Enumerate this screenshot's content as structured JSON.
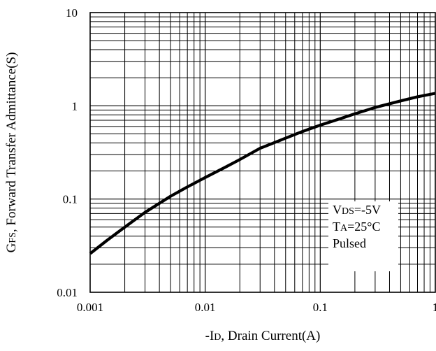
{
  "chart_data": {
    "type": "line",
    "xscale": "log",
    "yscale": "log",
    "xlim": [
      0.001,
      1
    ],
    "ylim": [
      0.01,
      10
    ],
    "grid": true,
    "xlabel": {
      "prefix": "-I",
      "sub": "D",
      "suffix": ", Drain Current(A)"
    },
    "ylabel": {
      "prefix": "G",
      "sub": "FS",
      "suffix": ", Forward Transfer Admittance(S)"
    },
    "x_ticks": [
      {
        "value": 0.001,
        "label": "0.001"
      },
      {
        "value": 0.01,
        "label": "0.01"
      },
      {
        "value": 0.1,
        "label": "0.1"
      },
      {
        "value": 1,
        "label": "1"
      }
    ],
    "y_ticks": [
      {
        "value": 0.01,
        "label": "0.01"
      },
      {
        "value": 0.1,
        "label": "0.1"
      },
      {
        "value": 1,
        "label": "1"
      },
      {
        "value": 10,
        "label": "10"
      }
    ],
    "series": [
      {
        "x": [
          0.001,
          0.0014,
          0.002,
          0.003,
          0.005,
          0.007,
          0.01,
          0.015,
          0.02,
          0.03,
          0.05,
          0.07,
          0.1,
          0.15,
          0.2,
          0.3,
          0.5,
          0.7,
          1
        ],
        "y": [
          0.026,
          0.036,
          0.05,
          0.072,
          0.107,
          0.135,
          0.17,
          0.22,
          0.265,
          0.35,
          0.45,
          0.53,
          0.62,
          0.73,
          0.82,
          0.96,
          1.13,
          1.25,
          1.36
        ]
      }
    ],
    "annotation": {
      "lines": [
        {
          "prefix": "V",
          "sub": "DS",
          "suffix": "=-5V"
        },
        {
          "prefix": "T",
          "sub": "A",
          "suffix": "=25°C"
        },
        {
          "prefix": "Pulsed",
          "sub": "",
          "suffix": ""
        }
      ]
    },
    "colors": {
      "line": "#000000",
      "grid": "#000000",
      "background": "#ffffff"
    }
  }
}
